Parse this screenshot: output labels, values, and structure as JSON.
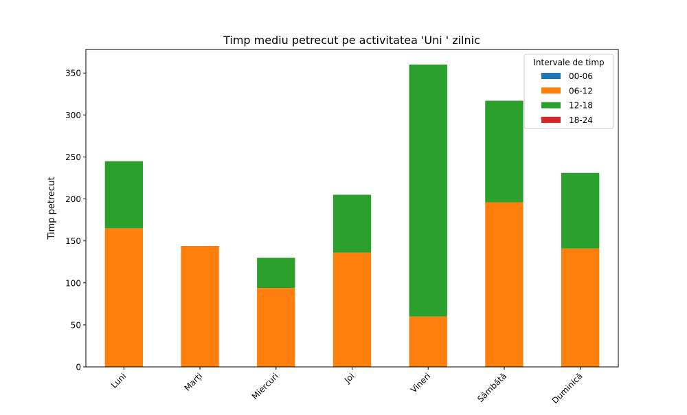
{
  "chart_data": {
    "type": "bar",
    "stacked": true,
    "title": "Timp mediu petrecut pe activitatea 'Uni ' zilnic",
    "xlabel": "",
    "ylabel": "Timp petrecut",
    "categories": [
      "Luni",
      "Marți",
      "Miercuri",
      "Joi",
      "Vineri",
      "Sâmbătă",
      "Duminică"
    ],
    "series": [
      {
        "name": "00-06",
        "color": "#1f77b4",
        "values": [
          0,
          0,
          0,
          0,
          0,
          0,
          0
        ]
      },
      {
        "name": "06-12",
        "color": "#ff7f0e",
        "values": [
          165,
          144,
          94,
          136,
          60,
          196,
          141
        ]
      },
      {
        "name": "12-18",
        "color": "#2ca02c",
        "values": [
          80,
          0,
          36,
          69,
          300,
          121,
          90
        ]
      },
      {
        "name": "18-24",
        "color": "#d62728",
        "values": [
          0,
          0,
          0,
          0,
          0,
          0,
          0
        ]
      }
    ],
    "ylim": [
      0,
      378
    ],
    "yticks": [
      0,
      50,
      100,
      150,
      200,
      250,
      300,
      350
    ],
    "grid": false,
    "legend": {
      "title": "Intervale de timp",
      "placement": "top-right"
    }
  }
}
